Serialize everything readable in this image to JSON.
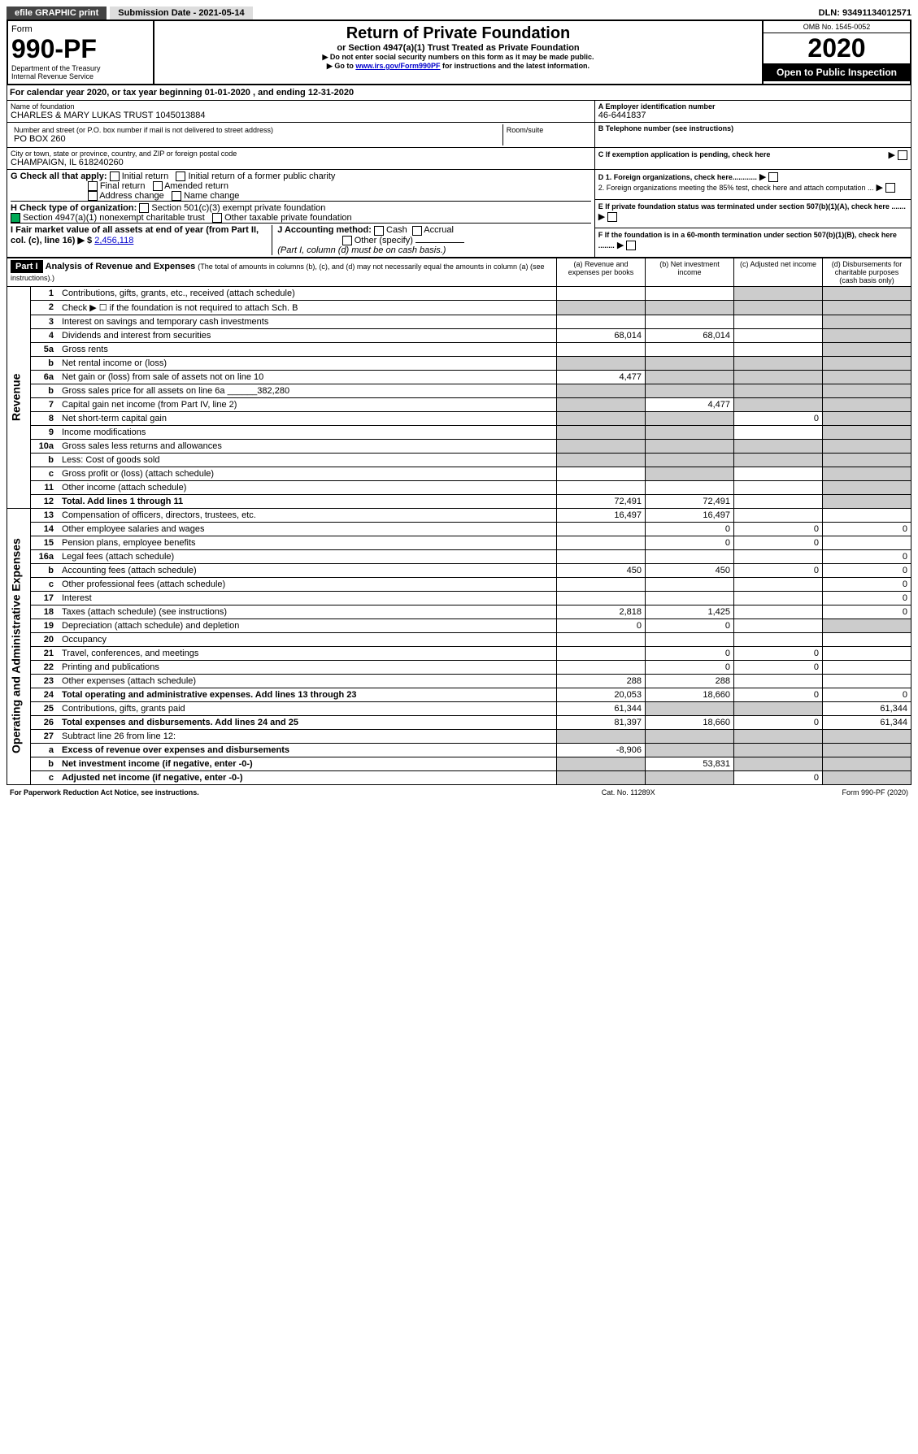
{
  "topbar": {
    "efile": "efile GRAPHIC print",
    "submission": "Submission Date - 2021-05-14",
    "dln_label": "DLN: 93491134012571"
  },
  "header": {
    "form_label": "Form",
    "form_no": "990-PF",
    "dept": "Department of the Treasury",
    "irs": "Internal Revenue Service",
    "title": "Return of Private Foundation",
    "subtitle": "or Section 4947(a)(1) Trust Treated as Private Foundation",
    "note1": "▶ Do not enter social security numbers on this form as it may be made public.",
    "note2_pre": "▶ Go to ",
    "note2_link": "www.irs.gov/Form990PF",
    "note2_post": " for instructions and the latest information.",
    "omb": "OMB No. 1545-0052",
    "year": "2020",
    "open": "Open to Public Inspection"
  },
  "cal": {
    "text_pre": "For calendar year 2020, or tax year beginning ",
    "begin": "01-01-2020",
    "mid": " , and ending ",
    "end": "12-31-2020"
  },
  "id": {
    "name_label": "Name of foundation",
    "name": "CHARLES & MARY LUKAS TRUST 1045013884",
    "addr_label": "Number and street (or P.O. box number if mail is not delivered to street address)",
    "addr": "PO BOX 260",
    "room_label": "Room/suite",
    "city_label": "City or town, state or province, country, and ZIP or foreign postal code",
    "city": "CHAMPAIGN, IL  618240260",
    "a_label": "A Employer identification number",
    "a_val": "46-6441837",
    "b_label": "B Telephone number (see instructions)",
    "c_label": "C If exemption application is pending, check here"
  },
  "checks": {
    "g_label": "G Check all that apply:",
    "g_opts": [
      "Initial return",
      "Initial return of a former public charity",
      "Final return",
      "Amended return",
      "Address change",
      "Name change"
    ],
    "h_label": "H Check type of organization:",
    "h_opts": [
      "Section 501(c)(3) exempt private foundation",
      "Section 4947(a)(1) nonexempt charitable trust",
      "Other taxable private foundation"
    ],
    "i_label": "I Fair market value of all assets at end of year (from Part II, col. (c), line 16) ▶ $",
    "i_val": "2,456,118",
    "j_label": "J Accounting method:",
    "j_opts": [
      "Cash",
      "Accrual",
      "Other (specify)"
    ],
    "j_note": "(Part I, column (d) must be on cash basis.)",
    "d1": "D 1. Foreign organizations, check here............",
    "d2": "2. Foreign organizations meeting the 85% test, check here and attach computation ...",
    "e": "E  If private foundation status was terminated under section 507(b)(1)(A), check here .......",
    "f": "F  If the foundation is in a 60-month termination under section 507(b)(1)(B), check here ........"
  },
  "part1": {
    "tab": "Part I",
    "title": "Analysis of Revenue and Expenses",
    "title_note": "(The total of amounts in columns (b), (c), and (d) may not necessarily equal the amounts in column (a) (see instructions).)",
    "col_a": "(a) Revenue and expenses per books",
    "col_b": "(b) Net investment income",
    "col_c": "(c) Adjusted net income",
    "col_d": "(d) Disbursements for charitable purposes (cash basis only)",
    "revenue_label": "Revenue",
    "expenses_label": "Operating and Administrative Expenses"
  },
  "rows": [
    {
      "n": "1",
      "d": "Contributions, gifts, grants, etc., received (attach schedule)",
      "a": "",
      "b": "",
      "c": "",
      "dd": "",
      "shade_b": false,
      "shade_c": true,
      "shade_d": true
    },
    {
      "n": "2",
      "d": "Check ▶ ☐ if the foundation is not required to attach Sch. B",
      "a": "",
      "b": "",
      "c": "",
      "dd": "",
      "shade_a": true,
      "shade_b": true,
      "shade_c": true,
      "shade_d": true
    },
    {
      "n": "3",
      "d": "Interest on savings and temporary cash investments",
      "a": "",
      "b": "",
      "c": "",
      "dd": "",
      "shade_d": true
    },
    {
      "n": "4",
      "d": "Dividends and interest from securities",
      "a": "68,014",
      "b": "68,014",
      "c": "",
      "dd": "",
      "shade_d": true
    },
    {
      "n": "5a",
      "d": "Gross rents",
      "a": "",
      "b": "",
      "c": "",
      "dd": "",
      "shade_d": true
    },
    {
      "n": "b",
      "d": "Net rental income or (loss)",
      "a": "",
      "b": "",
      "c": "",
      "dd": "",
      "shade_a": true,
      "shade_b": true,
      "shade_c": true,
      "shade_d": true,
      "sub": true
    },
    {
      "n": "6a",
      "d": "Net gain or (loss) from sale of assets not on line 10",
      "a": "4,477",
      "b": "",
      "c": "",
      "dd": "",
      "shade_b": true,
      "shade_c": true,
      "shade_d": true
    },
    {
      "n": "b",
      "d": "Gross sales price for all assets on line 6a",
      "a": "",
      "b": "",
      "c": "",
      "dd": "",
      "val_inline": "382,280",
      "shade_a": true,
      "shade_b": true,
      "shade_c": true,
      "shade_d": true,
      "sub": true
    },
    {
      "n": "7",
      "d": "Capital gain net income (from Part IV, line 2)",
      "a": "",
      "b": "4,477",
      "c": "",
      "dd": "",
      "shade_a": true,
      "shade_c": true,
      "shade_d": true
    },
    {
      "n": "8",
      "d": "Net short-term capital gain",
      "a": "",
      "b": "",
      "c": "0",
      "dd": "",
      "shade_a": true,
      "shade_b": true,
      "shade_d": true
    },
    {
      "n": "9",
      "d": "Income modifications",
      "a": "",
      "b": "",
      "c": "",
      "dd": "",
      "shade_a": true,
      "shade_b": true,
      "shade_d": true
    },
    {
      "n": "10a",
      "d": "Gross sales less returns and allowances",
      "a": "",
      "b": "",
      "c": "",
      "dd": "",
      "shade_a": true,
      "shade_b": true,
      "shade_c": true,
      "shade_d": true
    },
    {
      "n": "b",
      "d": "Less: Cost of goods sold",
      "a": "",
      "b": "",
      "c": "",
      "dd": "",
      "shade_a": true,
      "shade_b": true,
      "shade_c": true,
      "shade_d": true,
      "sub": true
    },
    {
      "n": "c",
      "d": "Gross profit or (loss) (attach schedule)",
      "a": "",
      "b": "",
      "c": "",
      "dd": "",
      "shade_b": true,
      "shade_d": true,
      "sub": true
    },
    {
      "n": "11",
      "d": "Other income (attach schedule)",
      "a": "",
      "b": "",
      "c": "",
      "dd": "",
      "shade_d": true
    },
    {
      "n": "12",
      "d": "Total. Add lines 1 through 11",
      "a": "72,491",
      "b": "72,491",
      "c": "",
      "dd": "",
      "bold": true,
      "shade_d": true
    },
    {
      "n": "13",
      "d": "Compensation of officers, directors, trustees, etc.",
      "a": "16,497",
      "b": "16,497",
      "c": "",
      "dd": ""
    },
    {
      "n": "14",
      "d": "Other employee salaries and wages",
      "a": "",
      "b": "0",
      "c": "0",
      "dd": "0"
    },
    {
      "n": "15",
      "d": "Pension plans, employee benefits",
      "a": "",
      "b": "0",
      "c": "0",
      "dd": ""
    },
    {
      "n": "16a",
      "d": "Legal fees (attach schedule)",
      "a": "",
      "b": "",
      "c": "",
      "dd": "0"
    },
    {
      "n": "b",
      "d": "Accounting fees (attach schedule)",
      "a": "450",
      "b": "450",
      "c": "0",
      "dd": "0",
      "sub": true
    },
    {
      "n": "c",
      "d": "Other professional fees (attach schedule)",
      "a": "",
      "b": "",
      "c": "",
      "dd": "0",
      "sub": true
    },
    {
      "n": "17",
      "d": "Interest",
      "a": "",
      "b": "",
      "c": "",
      "dd": "0"
    },
    {
      "n": "18",
      "d": "Taxes (attach schedule) (see instructions)",
      "a": "2,818",
      "b": "1,425",
      "c": "",
      "dd": "0"
    },
    {
      "n": "19",
      "d": "Depreciation (attach schedule) and depletion",
      "a": "0",
      "b": "0",
      "c": "",
      "dd": "",
      "shade_d": true
    },
    {
      "n": "20",
      "d": "Occupancy",
      "a": "",
      "b": "",
      "c": "",
      "dd": ""
    },
    {
      "n": "21",
      "d": "Travel, conferences, and meetings",
      "a": "",
      "b": "0",
      "c": "0",
      "dd": ""
    },
    {
      "n": "22",
      "d": "Printing and publications",
      "a": "",
      "b": "0",
      "c": "0",
      "dd": ""
    },
    {
      "n": "23",
      "d": "Other expenses (attach schedule)",
      "a": "288",
      "b": "288",
      "c": "",
      "dd": ""
    },
    {
      "n": "24",
      "d": "Total operating and administrative expenses. Add lines 13 through 23",
      "a": "20,053",
      "b": "18,660",
      "c": "0",
      "dd": "0",
      "bold": true
    },
    {
      "n": "25",
      "d": "Contributions, gifts, grants paid",
      "a": "61,344",
      "b": "",
      "c": "",
      "dd": "61,344",
      "shade_b": true,
      "shade_c": true
    },
    {
      "n": "26",
      "d": "Total expenses and disbursements. Add lines 24 and 25",
      "a": "81,397",
      "b": "18,660",
      "c": "0",
      "dd": "61,344",
      "bold": true
    },
    {
      "n": "27",
      "d": "Subtract line 26 from line 12:",
      "a": "",
      "b": "",
      "c": "",
      "dd": "",
      "shade_a": true,
      "shade_b": true,
      "shade_c": true,
      "shade_d": true
    },
    {
      "n": "a",
      "d": "Excess of revenue over expenses and disbursements",
      "a": "-8,906",
      "b": "",
      "c": "",
      "dd": "",
      "bold": true,
      "sub": true,
      "shade_b": true,
      "shade_c": true,
      "shade_d": true
    },
    {
      "n": "b",
      "d": "Net investment income (if negative, enter -0-)",
      "a": "",
      "b": "53,831",
      "c": "",
      "dd": "",
      "bold": true,
      "sub": true,
      "shade_a": true,
      "shade_c": true,
      "shade_d": true
    },
    {
      "n": "c",
      "d": "Adjusted net income (if negative, enter -0-)",
      "a": "",
      "b": "",
      "c": "0",
      "dd": "",
      "bold": true,
      "sub": true,
      "shade_a": true,
      "shade_b": true,
      "shade_d": true
    }
  ],
  "footer": {
    "left": "For Paperwork Reduction Act Notice, see instructions.",
    "mid": "Cat. No. 11289X",
    "right": "Form 990-PF (2020)"
  }
}
